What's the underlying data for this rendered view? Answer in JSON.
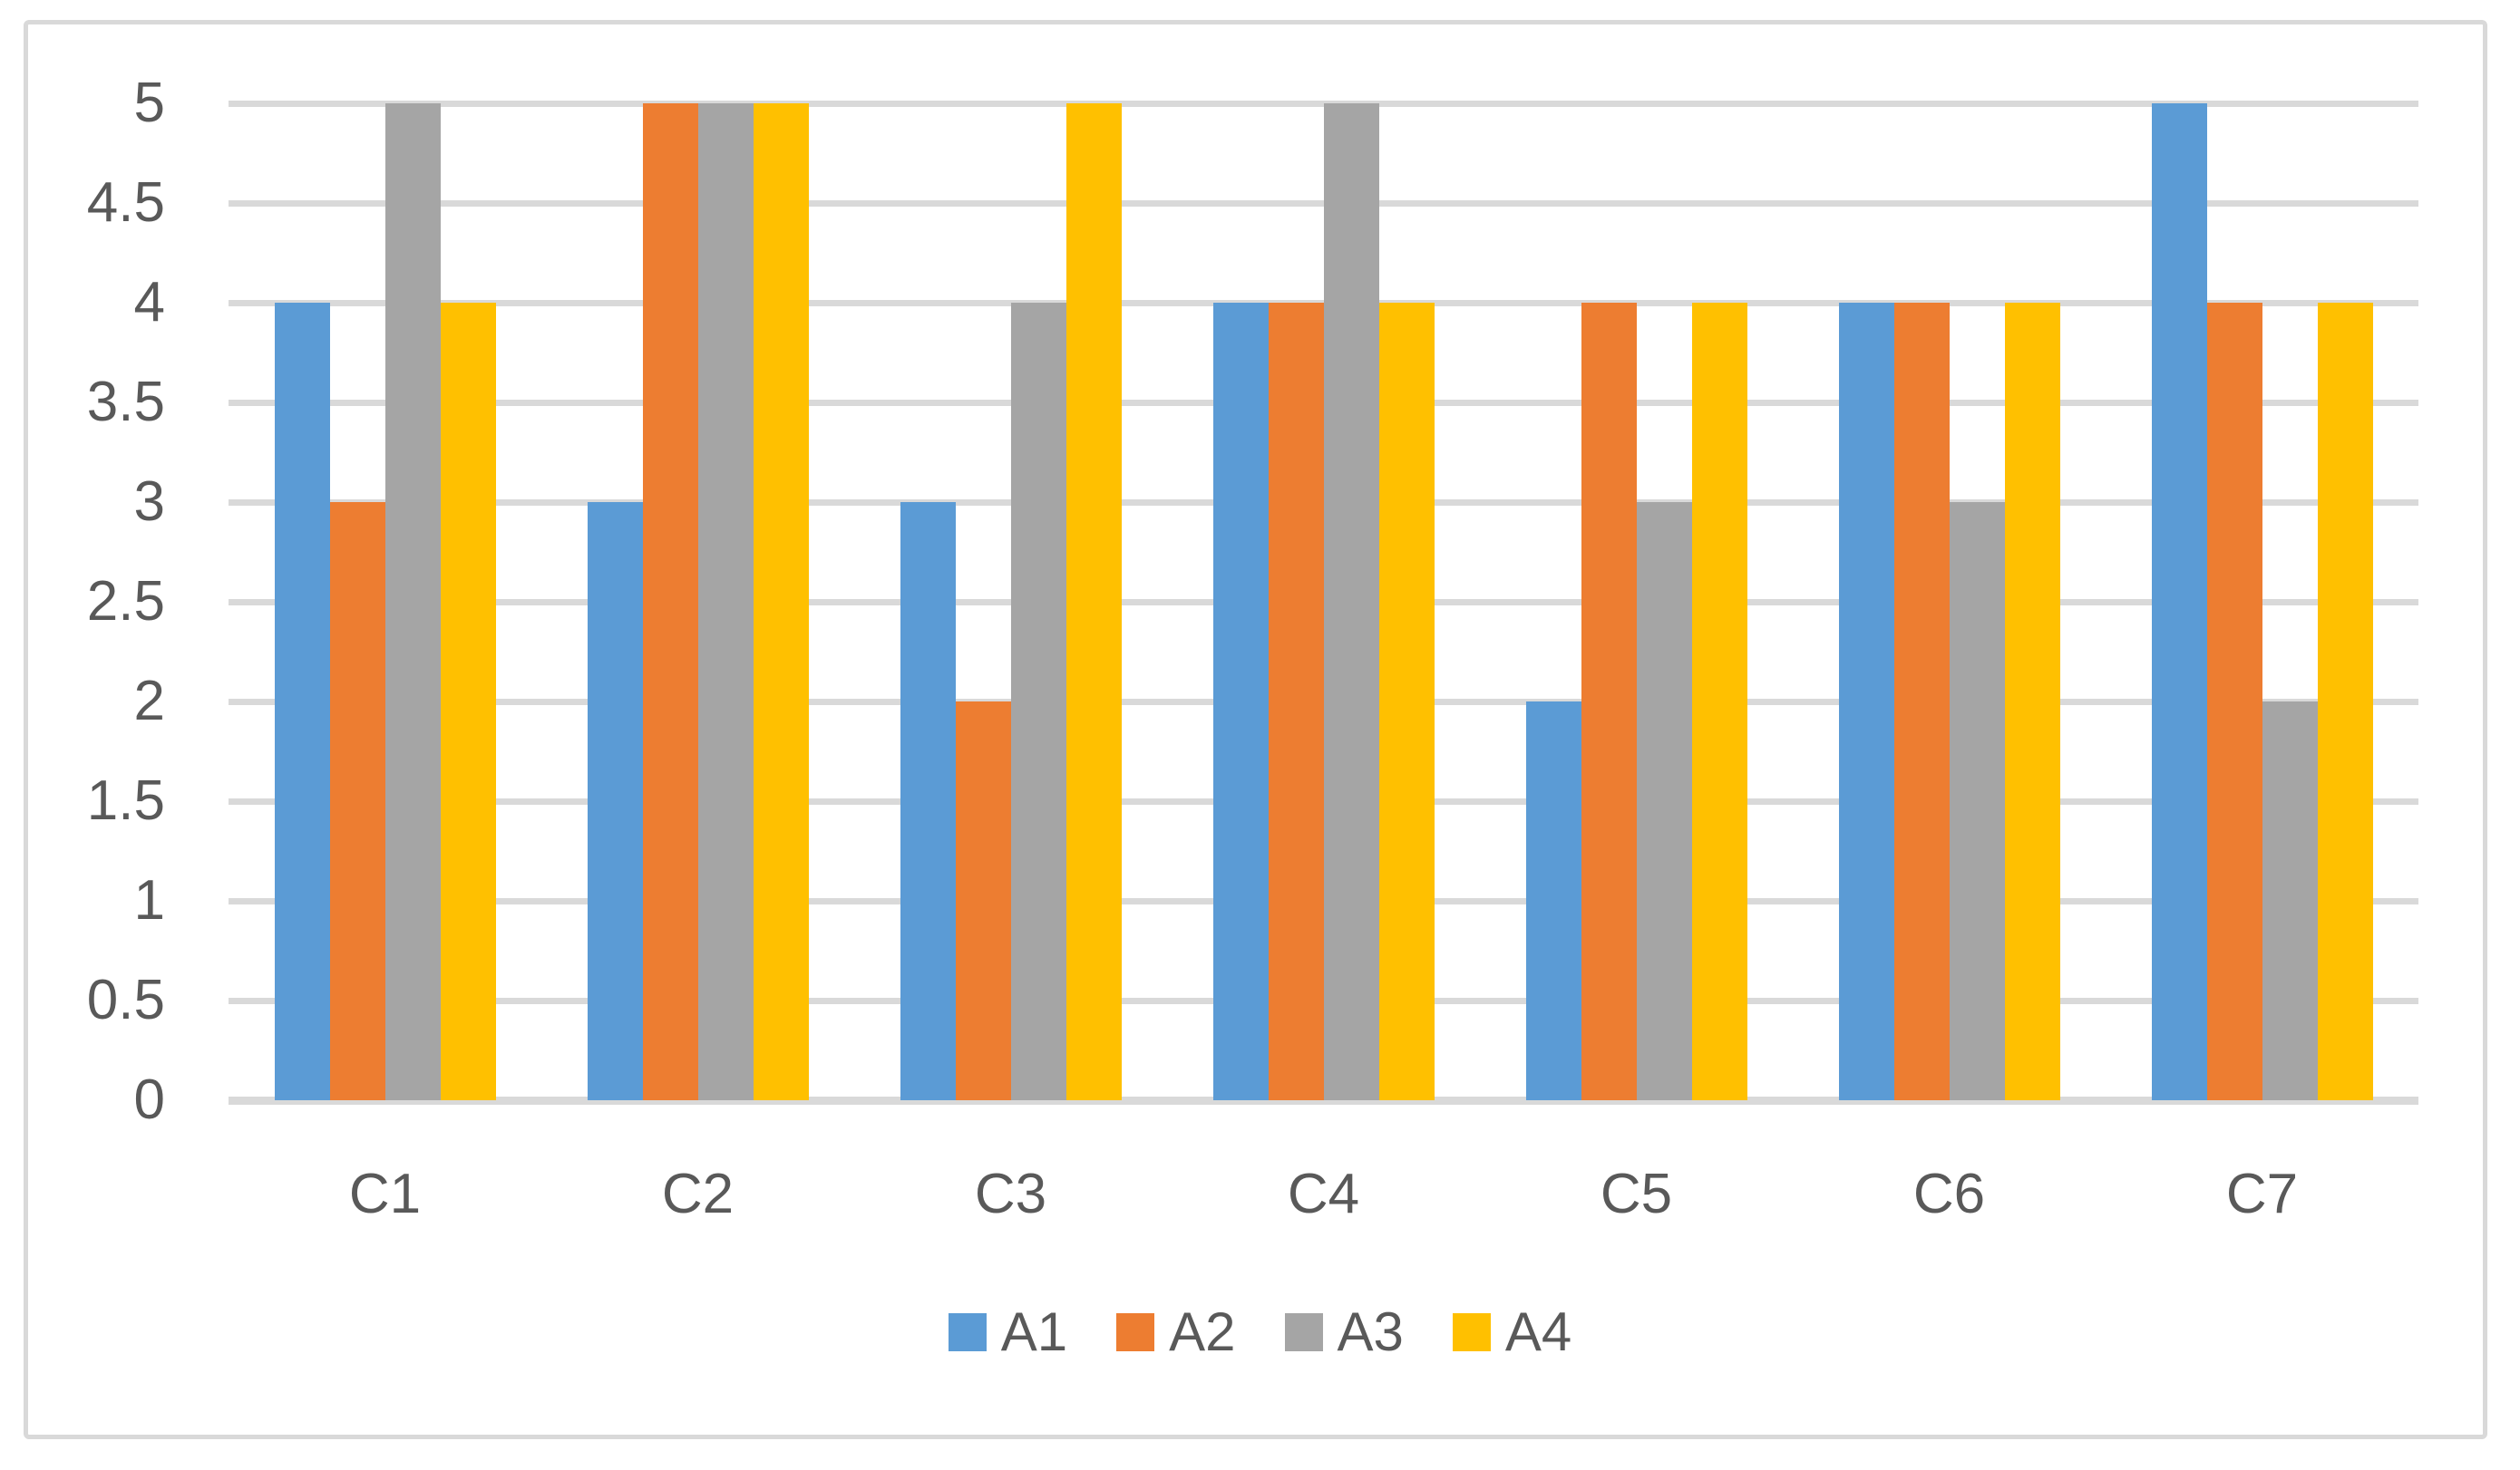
{
  "chart_data": {
    "type": "bar",
    "title": "",
    "xlabel": "",
    "ylabel": "",
    "categories": [
      "C1",
      "C2",
      "C3",
      "C4",
      "C5",
      "C6",
      "C7"
    ],
    "series": [
      {
        "name": "A1",
        "color": "#5B9BD5",
        "values": [
          4,
          3,
          3,
          4,
          2,
          4,
          5
        ]
      },
      {
        "name": "A2",
        "color": "#ED7D31",
        "values": [
          3,
          5,
          2,
          4,
          4,
          4,
          4
        ]
      },
      {
        "name": "A3",
        "color": "#A5A5A5",
        "values": [
          5,
          5,
          4,
          5,
          3,
          3,
          2
        ]
      },
      {
        "name": "A4",
        "color": "#FFC000",
        "values": [
          4,
          5,
          5,
          4,
          4,
          4,
          4
        ]
      }
    ],
    "ylim": [
      0,
      5
    ],
    "ytick_step": 0.5,
    "yticks": [
      "0",
      "0.5",
      "1",
      "1.5",
      "2",
      "2.5",
      "3",
      "3.5",
      "4",
      "4.5",
      "5"
    ],
    "grid": true,
    "legend_position": "bottom-center",
    "styles": {
      "gridline_color": "#D9D9D9",
      "axis_line_color": "#D9D9D9",
      "tick_label_color": "#595959",
      "border_color": "#D9D9D9",
      "background": "#FFFFFF"
    }
  }
}
